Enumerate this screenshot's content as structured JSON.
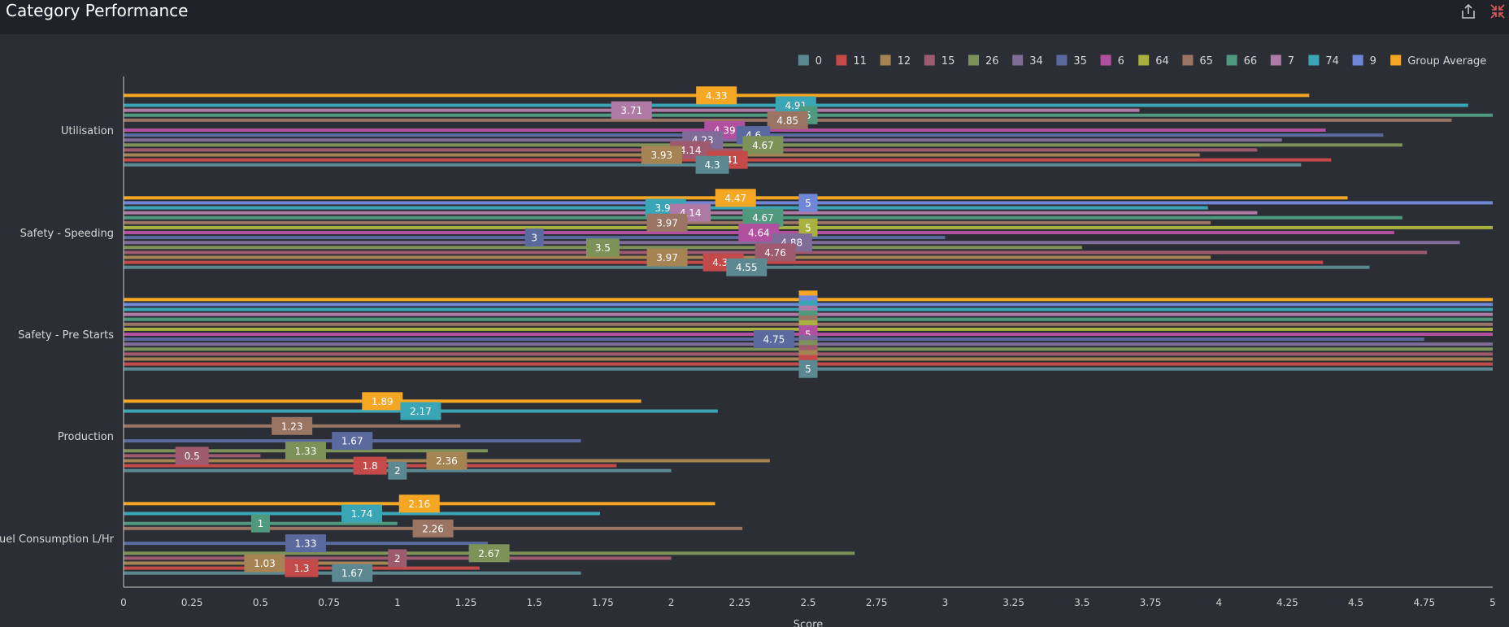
{
  "header": {
    "title": "Category Performance",
    "share_icon": "share-icon",
    "collapse_icon": "collapse-icon"
  },
  "colors": {
    "background": "#2b2f35",
    "header": "#1f2329",
    "axis": "#c8c8c8",
    "text": "#e6e6e6",
    "collapse": "#e05a5a"
  },
  "chart_data": {
    "type": "bar",
    "orientation": "horizontal",
    "xlabel": "Score",
    "ylabel": "",
    "xlim": [
      0,
      5
    ],
    "x_ticks": [
      "0",
      "0.25",
      "0.5",
      "0.75",
      "1",
      "1.25",
      "1.5",
      "1.75",
      "2",
      "2.25",
      "2.5",
      "2.75",
      "3",
      "3.25",
      "3.5",
      "3.75",
      "4",
      "4.25",
      "4.5",
      "4.75",
      "5"
    ],
    "grid": false,
    "legend_position": "top-right",
    "categories": [
      "Utilisation",
      "Safety - Speeding",
      "Safety - Pre Starts",
      "Production",
      "Fuel Consumption L/Hr"
    ],
    "series": [
      {
        "name": "Group Average",
        "color": "#f5a623",
        "values": [
          4.33,
          4.47,
          5,
          1.89,
          2.16
        ]
      },
      {
        "name": "9",
        "color": "#6f87d6",
        "values": [
          null,
          5,
          5,
          null,
          null
        ]
      },
      {
        "name": "74",
        "color": "#3aa6b5",
        "values": [
          4.91,
          3.96,
          5,
          2.17,
          1.74
        ]
      },
      {
        "name": "7",
        "color": "#b07aa6",
        "values": [
          3.71,
          4.14,
          5,
          null,
          null
        ]
      },
      {
        "name": "66",
        "color": "#4f9a7f",
        "values": [
          5,
          4.67,
          5,
          null,
          1
        ]
      },
      {
        "name": "65",
        "color": "#9b7563",
        "values": [
          4.85,
          3.97,
          5,
          1.23,
          2.26
        ]
      },
      {
        "name": "64",
        "color": "#a8b040",
        "values": [
          null,
          5,
          5,
          null,
          null
        ]
      },
      {
        "name": "6",
        "color": "#b0509e",
        "values": [
          4.39,
          4.64,
          5,
          null,
          null
        ]
      },
      {
        "name": "35",
        "color": "#5a6a9e",
        "values": [
          4.6,
          3,
          4.75,
          1.67,
          1.33
        ]
      },
      {
        "name": "34",
        "color": "#7f6c98",
        "values": [
          4.23,
          4.88,
          5,
          null,
          null
        ]
      },
      {
        "name": "26",
        "color": "#7c9259",
        "values": [
          4.67,
          3.5,
          5,
          1.33,
          2.67
        ]
      },
      {
        "name": "15",
        "color": "#9e5a6e",
        "values": [
          4.14,
          4.76,
          5,
          0.5,
          2
        ]
      },
      {
        "name": "12",
        "color": "#a58352",
        "values": [
          3.93,
          3.97,
          5,
          2.36,
          1.03
        ]
      },
      {
        "name": "11",
        "color": "#c44a4a",
        "values": [
          4.41,
          4.38,
          5,
          1.8,
          1.3
        ]
      },
      {
        "name": "0",
        "color": "#5c8891",
        "values": [
          4.3,
          4.55,
          5,
          2,
          1.67
        ]
      }
    ],
    "legend": [
      "0",
      "11",
      "12",
      "15",
      "26",
      "34",
      "35",
      "6",
      "64",
      "65",
      "66",
      "7",
      "74",
      "9",
      "Group Average"
    ]
  }
}
